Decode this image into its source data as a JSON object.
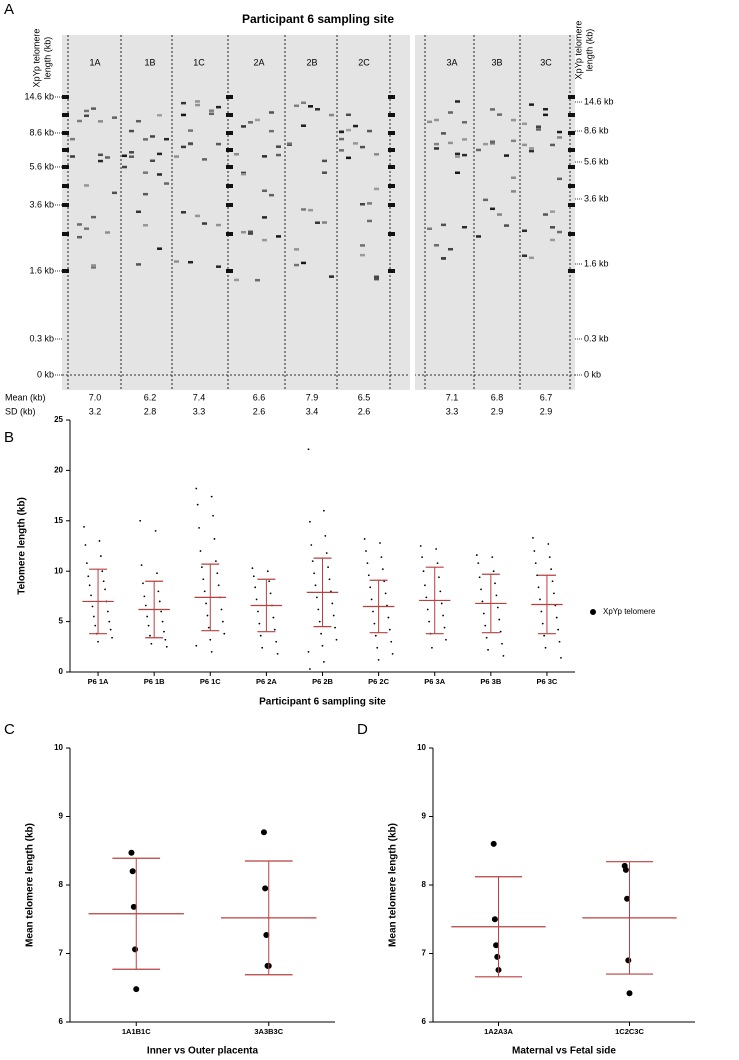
{
  "gel": {
    "panel_label": "A",
    "title": "Participant 6 sampling site",
    "left_axis_label": [
      "XpYp telomere",
      "length (kb)"
    ],
    "right_axis_label": [
      "XpYp telomere",
      "length (kb)"
    ],
    "left_markers": [
      "14.6 kb",
      "8.6 kb",
      "5.6 kb",
      "3.6 kb",
      "1.6 kb",
      "0.3 kb",
      "0 kb"
    ],
    "right_markers": [
      "14.6 kb",
      "8.6 kb",
      "5.6 kb",
      "3.6 kb",
      "1.6 kb",
      "0.3 kb",
      "0 kb"
    ],
    "lanes": [
      "1A",
      "1B",
      "1C",
      "2A",
      "2B",
      "2C",
      "3A",
      "3B",
      "3C"
    ],
    "mean_label": "Mean (kb)",
    "sd_label": "SD (kb)",
    "means": [
      "7.0",
      "6.2",
      "7.4",
      "6.6",
      "7.9",
      "6.5",
      "7.1",
      "6.8",
      "6.7"
    ],
    "sds": [
      "3.2",
      "2.8",
      "3.3",
      "2.6",
      "3.4",
      "2.6",
      "3.3",
      "2.9",
      "2.9"
    ]
  },
  "chart_data": [
    {
      "type": "dot",
      "panel_label": "B",
      "ylabel": "Telomere length (kb)",
      "xlabel": "Participant 6 sampling site",
      "categories": [
        "P6 1A",
        "P6 1B",
        "P6 1C",
        "P6 2A",
        "P6 2B",
        "P6 2C",
        "P6 3A",
        "P6 3B",
        "P6 3C"
      ],
      "series": [
        {
          "name": "XpYp telomere",
          "color": "#000000",
          "values": [
            [
              14.4,
              13,
              12.6,
              11.5,
              10.8,
              10,
              9.5,
              9,
              8.6,
              8.2,
              7.6,
              7,
              6.5,
              6,
              5.5,
              5,
              4.6,
              4.2,
              3.8,
              3.4,
              3
            ],
            [
              15,
              14,
              10.6,
              9.8,
              8.8,
              8,
              7.5,
              7,
              6.6,
              6,
              5.5,
              5,
              4.6,
              4,
              3.6,
              3.2,
              2.8,
              2.5
            ],
            [
              18.2,
              17.4,
              16.6,
              15.5,
              14.3,
              13.2,
              12,
              11,
              10.4,
              9.8,
              9.2,
              8.6,
              8,
              7.4,
              6.8,
              6.2,
              5.6,
              5,
              4.4,
              3.8,
              3.2,
              2.6,
              2
            ],
            [
              10.3,
              10,
              9.5,
              9,
              8.4,
              7.8,
              7.2,
              6.6,
              6,
              5.4,
              4.8,
              4.2,
              3.6,
              3,
              2.4,
              1.8
            ],
            [
              22.1,
              16,
              14.9,
              13.5,
              12.6,
              11.8,
              11,
              10.4,
              9.8,
              9.2,
              8.6,
              8,
              7.4,
              6.8,
              6.2,
              5.6,
              5,
              4.4,
              3.8,
              3.2,
              2.6,
              2,
              1,
              0.3
            ],
            [
              13.2,
              12.8,
              12,
              11.4,
              10.8,
              10.2,
              9.6,
              9,
              8.4,
              7.8,
              7.2,
              6.6,
              6,
              5.4,
              4.8,
              4.2,
              3.6,
              3,
              2.4,
              1.8,
              1.2
            ],
            [
              12.5,
              12.2,
              11.4,
              10.8,
              10,
              9.4,
              8.6,
              8,
              7.4,
              6.8,
              6.2,
              5.6,
              5,
              4.4,
              3.8,
              3.2,
              2.4
            ],
            [
              11.6,
              11.4,
              10.8,
              10,
              9.4,
              8.8,
              8.2,
              7.6,
              7,
              6.4,
              5.8,
              5.2,
              4.6,
              4,
              3.4,
              2.8,
              2.2,
              1.6
            ],
            [
              13.3,
              12.7,
              12,
              11.4,
              10.8,
              10.2,
              9.6,
              9,
              8.4,
              7.8,
              7.2,
              6.6,
              6,
              5.4,
              4.8,
              4.2,
              3.6,
              3,
              2.4,
              1.4
            ]
          ]
        }
      ],
      "mean": [
        7.0,
        6.2,
        7.4,
        6.6,
        7.9,
        6.5,
        7.1,
        6.8,
        6.7
      ],
      "sd": [
        3.2,
        2.8,
        3.3,
        2.6,
        3.4,
        2.6,
        3.3,
        2.9,
        2.9
      ],
      "error_color": "#b84040",
      "ylim": [
        0,
        25
      ],
      "yticks": [
        0,
        5,
        10,
        15,
        20,
        25
      ],
      "legend": "right"
    },
    {
      "type": "dot",
      "panel_label": "C",
      "ylabel": "Mean telomere length (kb)",
      "xlabel": "Inner vs Outer placenta",
      "categories": [
        "1A1B1C",
        "3A3B3C"
      ],
      "series": [
        {
          "color": "#000000",
          "values": [
            [
              8.47,
              8.2,
              7.68,
              7.06,
              6.48
            ],
            [
              8.77,
              7.95,
              7.27,
              6.82,
              6.82
            ]
          ]
        }
      ],
      "mean": [
        7.58,
        7.52
      ],
      "sd": [
        0.81,
        0.83
      ],
      "error_color": "#b84040",
      "ylim": [
        6,
        10
      ],
      "yticks": [
        6,
        7,
        8,
        9,
        10
      ]
    },
    {
      "type": "dot",
      "panel_label": "D",
      "ylabel": "Mean telomere length (kb)",
      "xlabel": "Maternal vs Fetal side",
      "categories": [
        "1A2A3A",
        "1C2C3C"
      ],
      "series": [
        {
          "color": "#000000",
          "values": [
            [
              8.6,
              7.5,
              7.12,
              6.95,
              6.76
            ],
            [
              8.28,
              8.22,
              7.8,
              6.9,
              6.42
            ]
          ]
        }
      ],
      "mean": [
        7.39,
        7.52
      ],
      "sd": [
        0.73,
        0.82
      ],
      "error_color": "#b84040",
      "ylim": [
        6,
        10
      ],
      "yticks": [
        6,
        7,
        8,
        9,
        10
      ]
    }
  ]
}
